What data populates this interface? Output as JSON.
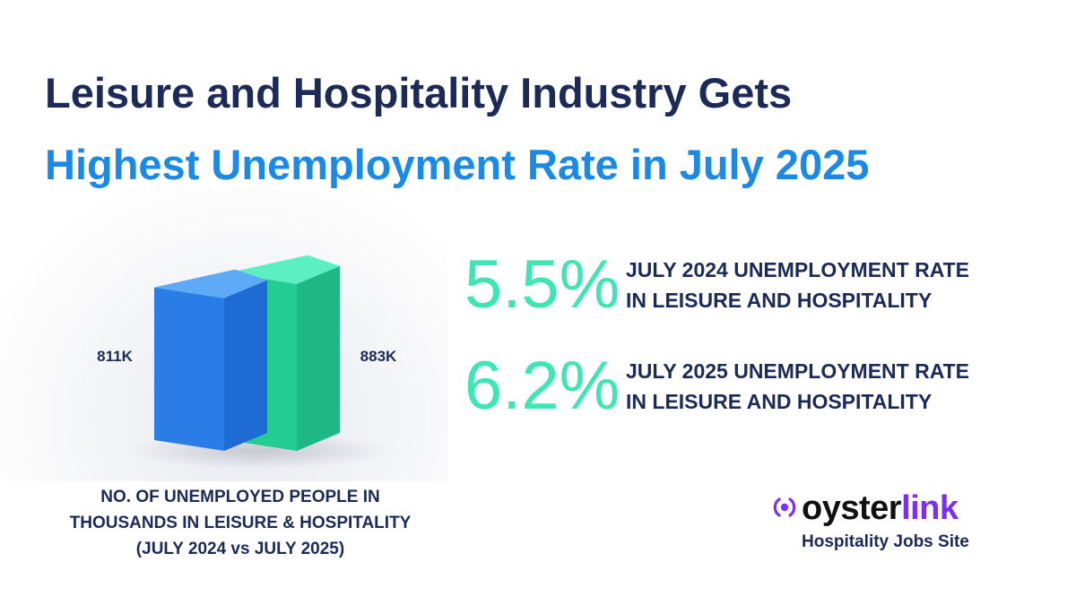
{
  "title": {
    "line1": "Leisure and Hospitality Industry Gets",
    "line2": "Highest Unemployment Rate in July 2025"
  },
  "chart_data": {
    "type": "bar",
    "categories": [
      "July 2024",
      "July 2025"
    ],
    "values": [
      811,
      883
    ],
    "value_labels": [
      "811K",
      "883K"
    ],
    "caption": [
      "NO. OF UNEMPLOYED PEOPLE IN",
      "THOUSANDS IN LEISURE & HOSPITALITY",
      "(JULY 2024 vs JULY 2025)"
    ],
    "colors": [
      "#2f8cf0",
      "#2ee3a4"
    ],
    "grid": false,
    "legend": "none"
  },
  "stats": [
    {
      "value": "5.5%",
      "label_lines": [
        "JULY 2024 UNEMPLOYMENT RATE",
        "IN LEISURE AND HOSPITALITY"
      ]
    },
    {
      "value": "6.2%",
      "label_lines": [
        "JULY 2025 UNEMPLOYMENT RATE",
        "IN LEISURE AND HOSPITALITY"
      ]
    }
  ],
  "brand": {
    "name_part1": "oyster",
    "name_part2": "link",
    "tagline": "Hospitality Jobs Site",
    "icon": "oysterlink-logo-icon"
  },
  "colors": {
    "navy": "#1b2a56",
    "blue": "#1a8ae6",
    "mint": "#3de6b2",
    "purple": "#7b2ff0",
    "bar_blue": "#2f8cf0",
    "bar_green": "#2ee3a4"
  }
}
